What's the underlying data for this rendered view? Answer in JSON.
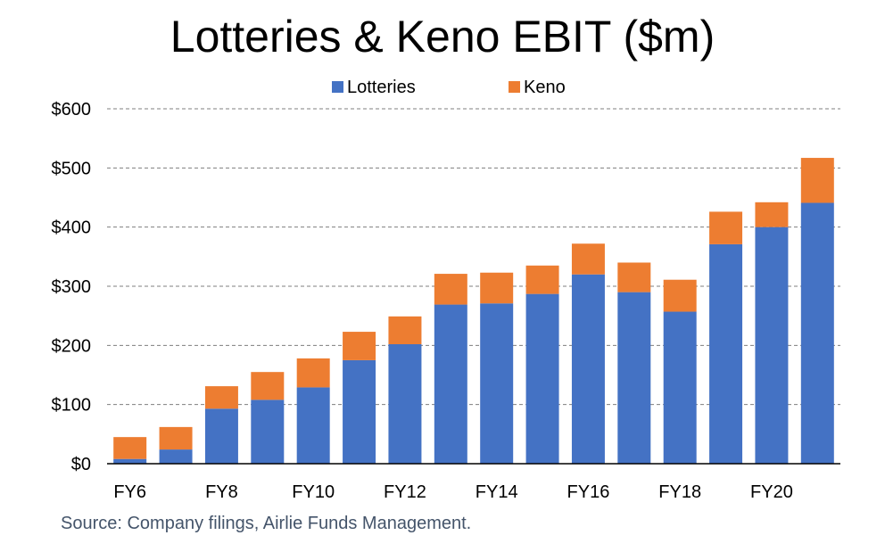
{
  "chart_data": {
    "type": "bar",
    "stacked": true,
    "title": "Lotteries & Keno EBIT ($m)",
    "categories": [
      "FY6",
      "FY7",
      "FY8",
      "FY9",
      "FY10",
      "FY11",
      "FY12",
      "FY13",
      "FY14",
      "FY15",
      "FY16",
      "FY17",
      "FY18",
      "FY19",
      "FY20",
      "FY21"
    ],
    "x_tick_labels": [
      "FY6",
      "",
      "FY8",
      "",
      "FY10",
      "",
      "FY12",
      "",
      "FY14",
      "",
      "FY16",
      "",
      "FY18",
      "",
      "FY20",
      ""
    ],
    "series": [
      {
        "name": "Lotteries",
        "color": "#4472c4",
        "values": [
          8,
          24,
          93,
          108,
          129,
          175,
          202,
          269,
          271,
          287,
          320,
          290,
          257,
          371,
          400,
          441
        ]
      },
      {
        "name": "Keno",
        "color": "#ed7d31",
        "values": [
          37,
          38,
          38,
          47,
          49,
          48,
          47,
          52,
          52,
          48,
          52,
          50,
          54,
          55,
          42,
          76
        ]
      }
    ],
    "ylim": [
      0,
      600
    ],
    "yticks": [
      0,
      100,
      200,
      300,
      400,
      500,
      600
    ],
    "y_tick_labels": [
      "$0",
      "$100",
      "$200",
      "$300",
      "$400",
      "$500",
      "$600"
    ],
    "grid": true,
    "legend_position": "top-center",
    "xlabel": "",
    "ylabel": ""
  },
  "source": "Source: Company filings, Airlie Funds Management."
}
